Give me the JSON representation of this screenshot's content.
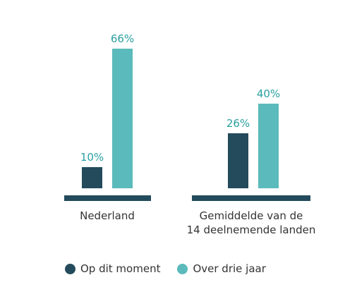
{
  "chart_data": {
    "type": "bar",
    "categories": [
      "Nederland",
      "Gemiddelde van de\n14 deelnemende landen"
    ],
    "series": [
      {
        "name": "Op dit moment",
        "values": [
          10,
          26
        ],
        "labels": [
          "10%",
          "26%"
        ],
        "color": "#234b5c"
      },
      {
        "name": "Over drie jaar",
        "values": [
          66,
          40
        ],
        "labels": [
          "66%",
          "40%"
        ],
        "color": "#5bbabb"
      }
    ],
    "ylim": [
      0,
      70
    ],
    "grid": false,
    "legend_position": "bottom-left",
    "axis_color": "#234b5c",
    "label_color": "#2a9fa0"
  }
}
